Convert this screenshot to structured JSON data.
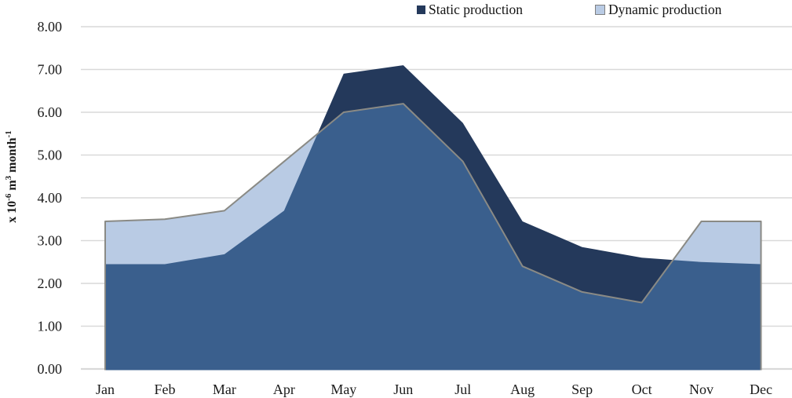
{
  "legend": [
    {
      "label": "Static production",
      "color": "#24395B",
      "border": "#24395B"
    },
    {
      "label": "Dynamic production",
      "color": "#B9CBE4",
      "border": "#7F7F7F"
    }
  ],
  "chart_data": {
    "type": "area",
    "title": "",
    "categories": [
      "Jan",
      "Feb",
      "Mar",
      "Apr",
      "May",
      "Jun",
      "Jul",
      "Aug",
      "Sep",
      "Oct",
      "Nov",
      "Dec"
    ],
    "series": [
      {
        "name": "Static production",
        "values": [
          2.45,
          2.45,
          2.68,
          3.7,
          6.9,
          7.1,
          5.75,
          3.45,
          2.85,
          2.6,
          2.5,
          2.45
        ],
        "color": "#24395B"
      },
      {
        "name": "Dynamic production",
        "values": [
          3.45,
          3.5,
          3.7,
          4.85,
          6.0,
          6.2,
          4.85,
          2.4,
          1.8,
          1.55,
          3.45,
          3.45
        ],
        "color": "#B9CBE4",
        "border_color": "#8A8A85"
      }
    ],
    "overlap_color": "#3A5F8D",
    "xlabel": "",
    "ylabel": "x 10⁻⁶ m³ month⁻¹",
    "ylabel_parts": [
      {
        "text": "x 10",
        "sup": false
      },
      {
        "text": "-6",
        "sup": true
      },
      {
        "text": " m",
        "sup": false
      },
      {
        "text": "3",
        "sup": true
      },
      {
        "text": " month",
        "sup": false
      },
      {
        "text": "-1",
        "sup": true
      }
    ],
    "ylim": [
      0,
      8
    ],
    "ytick_step": 1,
    "yticks": [
      "0.00",
      "1.00",
      "2.00",
      "3.00",
      "4.00",
      "5.00",
      "6.00",
      "7.00",
      "8.00"
    ],
    "grid": "horizontal",
    "gridline_color": "#D9D9D9",
    "axis_text_color": "#1A1A1A",
    "legend_position": "top"
  }
}
